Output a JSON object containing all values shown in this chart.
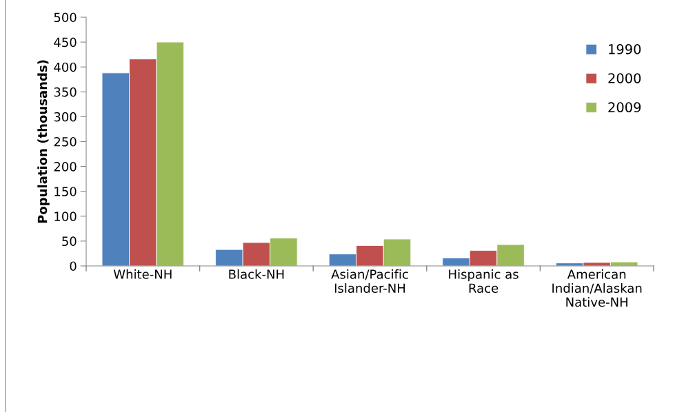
{
  "chart_data": {
    "type": "bar",
    "ylabel": "Population (thousands)",
    "categories": [
      "White-NH",
      "Black-NH",
      "Asian/Pacific\nIslander-NH",
      "Hispanic as\nRace",
      "American\nIndian/Alaskan\nNative-NH"
    ],
    "series": [
      {
        "name": "1990",
        "color": "#4f81bd",
        "values": [
          388,
          33,
          24,
          16,
          6
        ]
      },
      {
        "name": "2000",
        "color": "#c0504d",
        "values": [
          416,
          47,
          41,
          31,
          7
        ]
      },
      {
        "name": "2009",
        "color": "#9bbb59",
        "values": [
          450,
          56,
          54,
          43,
          8
        ]
      }
    ],
    "ylim": [
      0,
      500
    ],
    "yticks": [
      0,
      50,
      100,
      150,
      200,
      250,
      300,
      350,
      400,
      450,
      500
    ],
    "grid": false,
    "legend": "right"
  }
}
